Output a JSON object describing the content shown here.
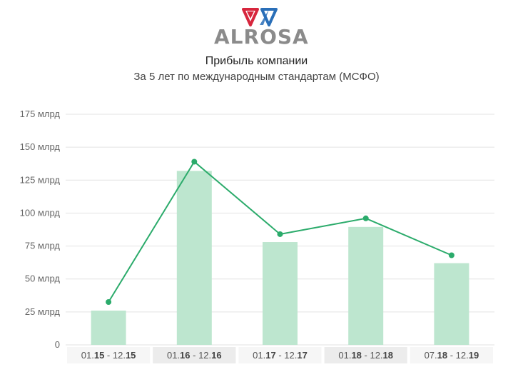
{
  "brand": {
    "logo_text": "ALROSA",
    "colors": {
      "red": "#d7263d",
      "blue": "#2a6fb8",
      "gray": "#8b8b8b"
    }
  },
  "header": {
    "title": "Прибыль компании",
    "subtitle": "За 5 лет по международным стандартам (МСФО)"
  },
  "colors": {
    "bar": "#bde6cf",
    "line": "#2bab6b",
    "grid": "#e3e3e3",
    "axis_label_bg_dark": "#ececec",
    "axis_label_bg_light": "#f6f6f6"
  },
  "chart_data": {
    "type": "bar",
    "title": "Прибыль компании",
    "subtitle": "За 5 лет по международным стандартам (МСФО)",
    "y_tick_labels": [
      "0",
      "25 млрд",
      "50 млрд",
      "75 млрд",
      "100 млрд",
      "125 млрд",
      "150 млрд",
      "175 млрд"
    ],
    "y_tick_values": [
      0,
      25,
      50,
      75,
      100,
      125,
      150,
      175
    ],
    "ylim": [
      0,
      175
    ],
    "grid": true,
    "categories": [
      {
        "start": "01.",
        "start_bold": "15",
        "sep": " - 12.",
        "end_bold": "15"
      },
      {
        "start": "01.",
        "start_bold": "16",
        "sep": " - 12.",
        "end_bold": "16"
      },
      {
        "start": "01.",
        "start_bold": "17",
        "sep": " - 12.",
        "end_bold": "17"
      },
      {
        "start": "01.",
        "start_bold": "18",
        "sep": " - 12.",
        "end_bold": "18"
      },
      {
        "start": "07.",
        "start_bold": "18",
        "sep": " - 12.",
        "end_bold": "19"
      }
    ],
    "series": [
      {
        "type": "bar",
        "values": [
          26,
          132,
          78,
          89.5,
          62
        ]
      },
      {
        "type": "line",
        "values": [
          32.5,
          139,
          84,
          96,
          68
        ]
      }
    ]
  }
}
